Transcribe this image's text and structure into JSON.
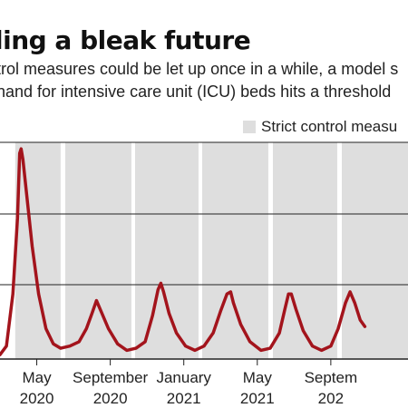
{
  "header": {
    "title": "ling a bleak future",
    "subtitle_line1": "trol measures could be let up once in a while, a model s",
    "subtitle_line2": "nand for intensive care unit (ICU) beds hits a threshold"
  },
  "legend": {
    "strict_label": "Strict control measu"
  },
  "colors": {
    "line": "#a3141c",
    "band": "#dedede",
    "grid": "#222222"
  },
  "chart_data": {
    "type": "line",
    "x_unit": "months since March 2020 (approx.)",
    "x_ticks": [
      {
        "x": 2,
        "month": "May",
        "year": "2020"
      },
      {
        "x": 6,
        "month": "September",
        "year": "2020"
      },
      {
        "x": 10,
        "month": "January",
        "year": "2021"
      },
      {
        "x": 14,
        "month": "May",
        "year": "2021"
      },
      {
        "x": 18,
        "month": "Septem",
        "year": "202"
      }
    ],
    "xlim": [
      0,
      22.2
    ],
    "ylim": [
      0,
      1
    ],
    "strict_periods": [
      [
        0.83,
        3.3
      ],
      [
        3.55,
        7.15
      ],
      [
        7.35,
        10.8
      ],
      [
        11.0,
        14.6
      ],
      [
        14.85,
        18.35
      ],
      [
        18.6,
        22.2
      ]
    ],
    "series": [
      {
        "values": [
          [
            0.0,
            0.02
          ],
          [
            0.35,
            0.06
          ],
          [
            0.7,
            0.3
          ],
          [
            0.95,
            0.65
          ],
          [
            1.07,
            0.95
          ],
          [
            1.15,
            0.97
          ],
          [
            1.25,
            0.92
          ],
          [
            1.45,
            0.76
          ],
          [
            1.75,
            0.52
          ],
          [
            2.1,
            0.3
          ],
          [
            2.5,
            0.14
          ],
          [
            2.9,
            0.07
          ],
          [
            3.3,
            0.05
          ],
          [
            3.8,
            0.06
          ],
          [
            4.3,
            0.08
          ],
          [
            4.7,
            0.14
          ],
          [
            5.0,
            0.21
          ],
          [
            5.25,
            0.27
          ],
          [
            5.5,
            0.22
          ],
          [
            5.9,
            0.14
          ],
          [
            6.4,
            0.07
          ],
          [
            6.9,
            0.04
          ],
          [
            7.4,
            0.05
          ],
          [
            7.9,
            0.08
          ],
          [
            8.3,
            0.2
          ],
          [
            8.6,
            0.32
          ],
          [
            8.75,
            0.35
          ],
          [
            8.9,
            0.31
          ],
          [
            9.2,
            0.21
          ],
          [
            9.6,
            0.12
          ],
          [
            10.1,
            0.06
          ],
          [
            10.6,
            0.04
          ],
          [
            11.1,
            0.06
          ],
          [
            11.6,
            0.12
          ],
          [
            12.0,
            0.22
          ],
          [
            12.35,
            0.3
          ],
          [
            12.55,
            0.31
          ],
          [
            12.7,
            0.26
          ],
          [
            13.1,
            0.16
          ],
          [
            13.6,
            0.08
          ],
          [
            14.2,
            0.04
          ],
          [
            14.7,
            0.05
          ],
          [
            15.2,
            0.12
          ],
          [
            15.5,
            0.23
          ],
          [
            15.7,
            0.3
          ],
          [
            15.85,
            0.3
          ],
          [
            16.1,
            0.23
          ],
          [
            16.5,
            0.13
          ],
          [
            17.0,
            0.06
          ],
          [
            17.5,
            0.04
          ],
          [
            18.0,
            0.06
          ],
          [
            18.4,
            0.14
          ],
          [
            18.8,
            0.26
          ],
          [
            19.05,
            0.31
          ],
          [
            19.3,
            0.26
          ],
          [
            19.6,
            0.18
          ],
          [
            19.85,
            0.15
          ]
        ]
      }
    ]
  }
}
